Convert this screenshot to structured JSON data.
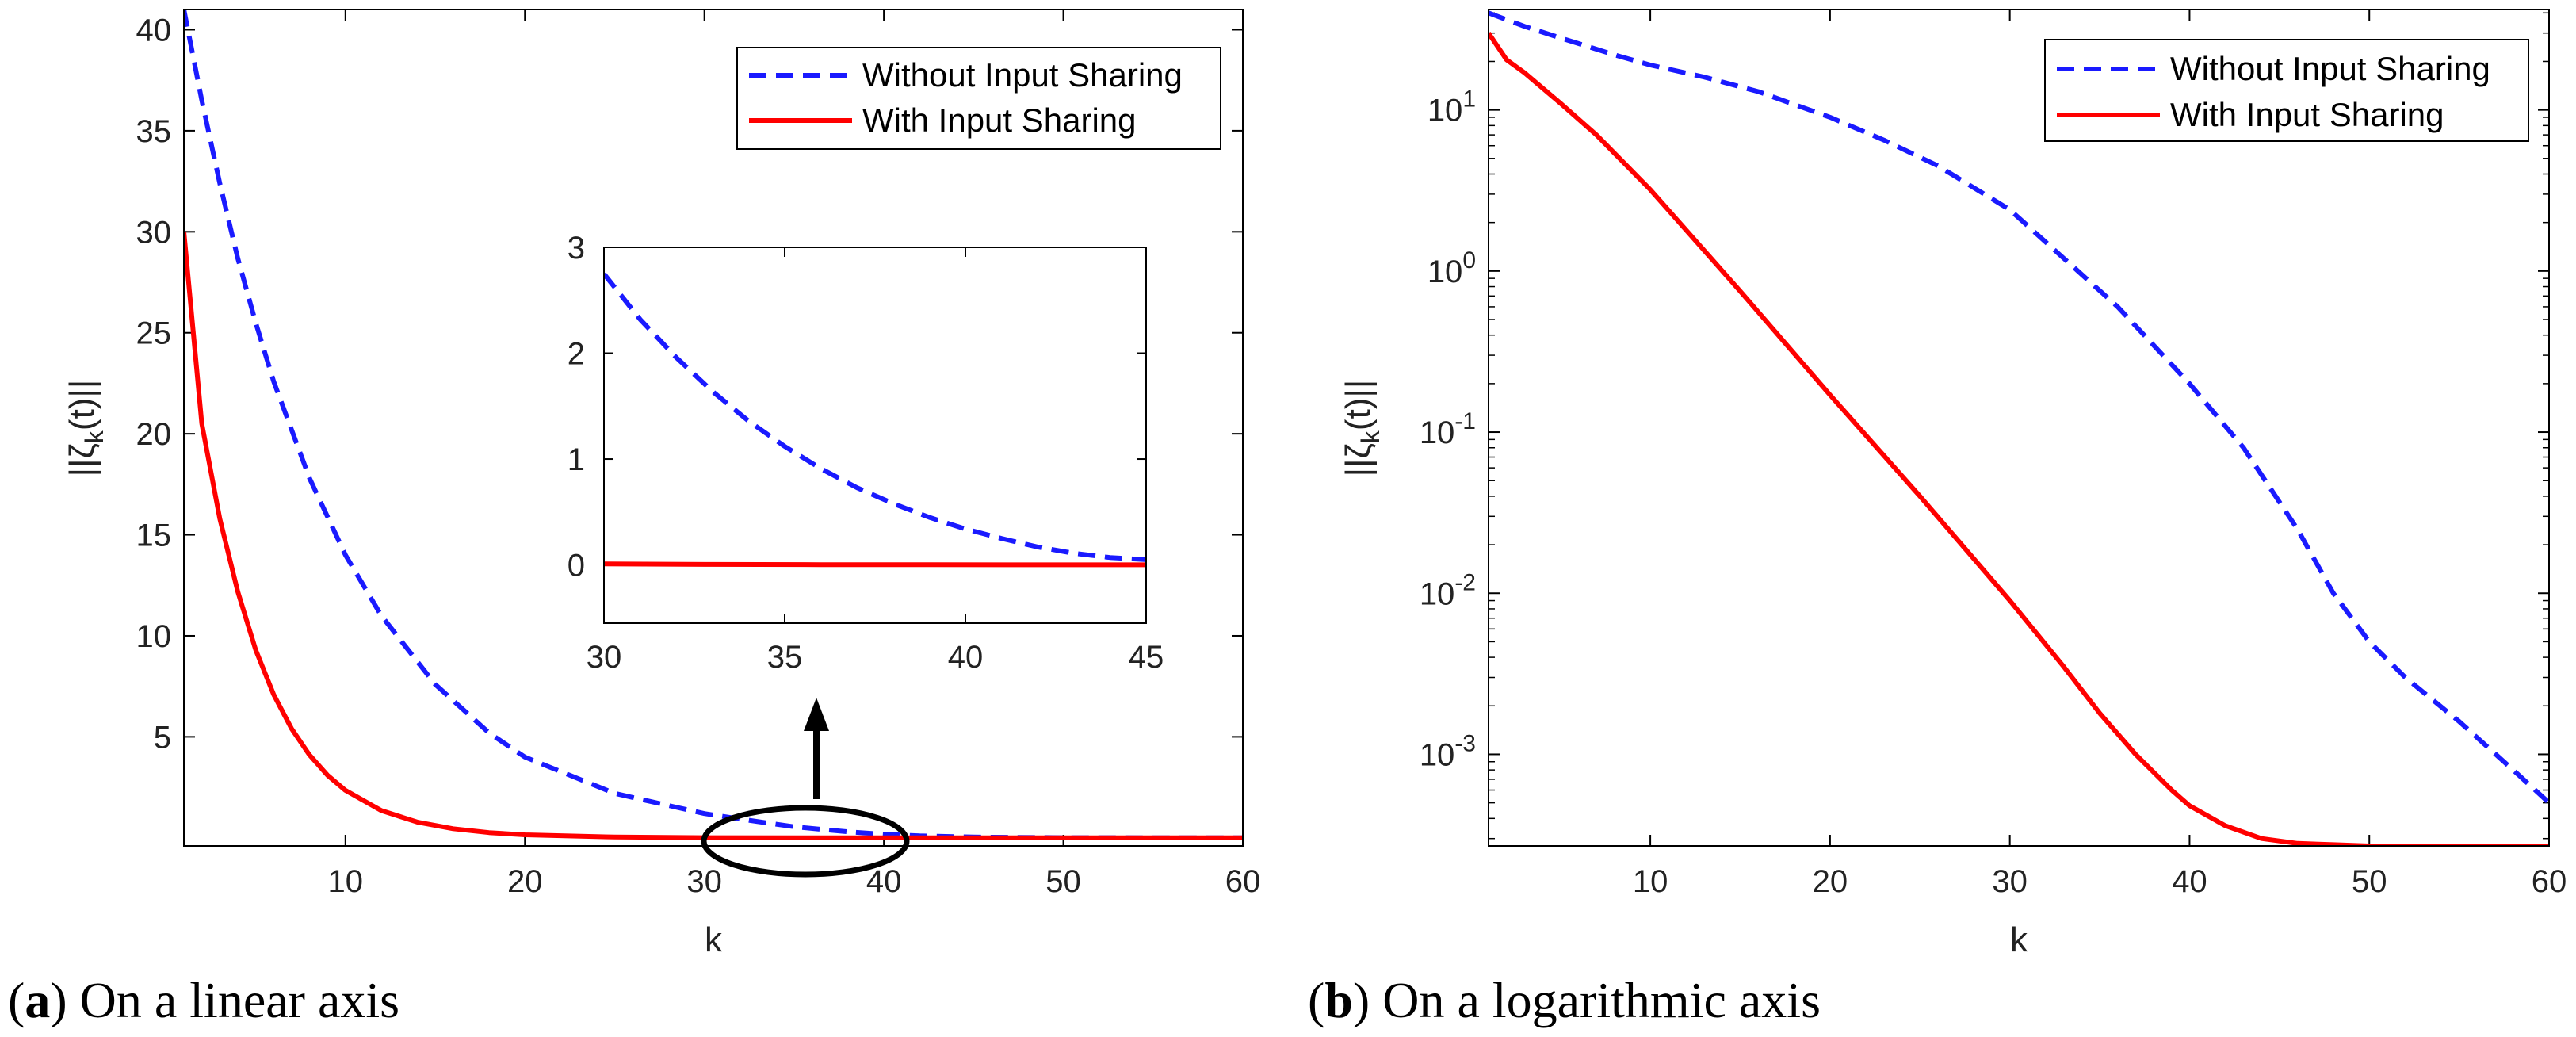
{
  "chart_data": [
    {
      "type": "line",
      "panel": "a",
      "caption_letter": "a",
      "caption_text": "On a linear axis",
      "xlabel": "k",
      "ylabel": "||ζ",
      "ylabel_sub": "k",
      "ylabel_end": "(t)||",
      "yscale": "linear",
      "xlim": [
        1,
        60
      ],
      "ylim": [
        -0.4,
        41
      ],
      "xticks": [
        10,
        20,
        30,
        40,
        50,
        60
      ],
      "xtick_labels": [
        "10",
        "20",
        "30",
        "40",
        "50",
        "60"
      ],
      "yticks": [
        5,
        10,
        15,
        20,
        25,
        30,
        35,
        40
      ],
      "ytick_labels": [
        "5",
        "10",
        "15",
        "20",
        "25",
        "30",
        "35",
        "40"
      ],
      "legend_position": "top-right",
      "series": [
        {
          "name": "Without Input Sharing",
          "color": "#1a1aff",
          "style": "dashed",
          "x": [
            1,
            2,
            3,
            4,
            5,
            6,
            8,
            10,
            12,
            15,
            18,
            20,
            25,
            30,
            33,
            35,
            38,
            40,
            42,
            45,
            50,
            55,
            60
          ],
          "y": [
            41,
            36.5,
            32.4,
            28.7,
            25.5,
            22.6,
            17.8,
            14.0,
            11.0,
            7.6,
            5.2,
            4.0,
            2.2,
            1.2,
            0.8,
            0.55,
            0.3,
            0.18,
            0.1,
            0.04,
            0.01,
            0.005,
            0.001
          ]
        },
        {
          "name": "With Input Sharing",
          "color": "#ff0000",
          "style": "solid",
          "x": [
            1,
            2,
            3,
            4,
            5,
            6,
            7,
            8,
            9,
            10,
            12,
            14,
            16,
            18,
            20,
            25,
            30,
            40,
            50,
            60
          ],
          "y": [
            30,
            20.5,
            15.8,
            12.2,
            9.3,
            7.1,
            5.4,
            4.1,
            3.1,
            2.35,
            1.35,
            0.78,
            0.45,
            0.26,
            0.15,
            0.04,
            0.01,
            0.001,
            0.0003,
            0.0003
          ]
        }
      ],
      "inset": {
        "xlim": [
          30,
          45
        ],
        "ylim": [
          -0.55,
          3
        ],
        "xticks": [
          30,
          35,
          40,
          45
        ],
        "xtick_labels": [
          "30",
          "35",
          "40",
          "45"
        ],
        "yticks": [
          0,
          1,
          2,
          3
        ],
        "ytick_labels": [
          "0",
          "1",
          "2",
          "3"
        ],
        "series": [
          {
            "name": "Without Input Sharing",
            "color": "#1a1aff",
            "style": "dashed",
            "x": [
              30,
              31,
              32,
              33,
              34,
              35,
              36,
              37,
              38,
              39,
              40,
              41,
              42,
              43,
              44,
              45
            ],
            "y": [
              2.75,
              2.32,
              1.96,
              1.64,
              1.36,
              1.12,
              0.91,
              0.73,
              0.58,
              0.45,
              0.34,
              0.25,
              0.17,
              0.11,
              0.07,
              0.05
            ]
          },
          {
            "name": "With Input Sharing",
            "color": "#ff0000",
            "style": "solid",
            "x": [
              30,
              33,
              36,
              39,
              42,
              45
            ],
            "y": [
              0.01,
              0.005,
              0.003,
              0.002,
              0.001,
              0.001
            ]
          }
        ]
      }
    },
    {
      "type": "line",
      "panel": "b",
      "caption_letter": "b",
      "caption_text": "On a logarithmic axis",
      "xlabel": "k",
      "ylabel": "||ζ",
      "ylabel_sub": "k",
      "ylabel_end": "(t)||",
      "yscale": "log",
      "xlim": [
        1,
        60
      ],
      "ylim": [
        0.00027,
        42
      ],
      "xticks": [
        10,
        20,
        30,
        40,
        50,
        60
      ],
      "xtick_labels": [
        "10",
        "20",
        "30",
        "40",
        "50",
        "60"
      ],
      "yticks": [
        10,
        1,
        0.1,
        0.01,
        0.001
      ],
      "ytick_base": "10",
      "ytick_exponents": [
        "1",
        "0",
        "-1",
        "-2",
        "-3"
      ],
      "legend_position": "top-right",
      "series": [
        {
          "name": "Without Input Sharing",
          "color": "#1a1aff",
          "style": "dashed",
          "x": [
            1,
            3,
            5,
            8,
            10,
            13,
            16,
            20,
            23,
            26,
            30,
            33,
            36,
            40,
            43,
            46,
            48,
            50,
            52,
            55,
            58,
            60
          ],
          "y": [
            40,
            33,
            28,
            22,
            19,
            16,
            13,
            9,
            6.5,
            4.5,
            2.4,
            1.2,
            0.6,
            0.2,
            0.08,
            0.025,
            0.01,
            0.005,
            0.003,
            0.0016,
            0.0008,
            0.0005
          ]
        },
        {
          "name": "With Input Sharing",
          "color": "#ff0000",
          "style": "solid",
          "x": [
            1,
            2,
            3,
            5,
            7,
            10,
            15,
            20,
            25,
            30,
            33,
            35,
            37,
            39,
            40,
            42,
            44,
            46,
            48,
            50,
            55,
            60
          ],
          "y": [
            30,
            20.5,
            17,
            11,
            7,
            3.2,
            0.75,
            0.17,
            0.04,
            0.009,
            0.0035,
            0.0018,
            0.001,
            0.0006,
            0.00048,
            0.00036,
            0.0003,
            0.00028,
            0.000275,
            0.00027,
            0.00027,
            0.00027
          ]
        }
      ]
    }
  ]
}
